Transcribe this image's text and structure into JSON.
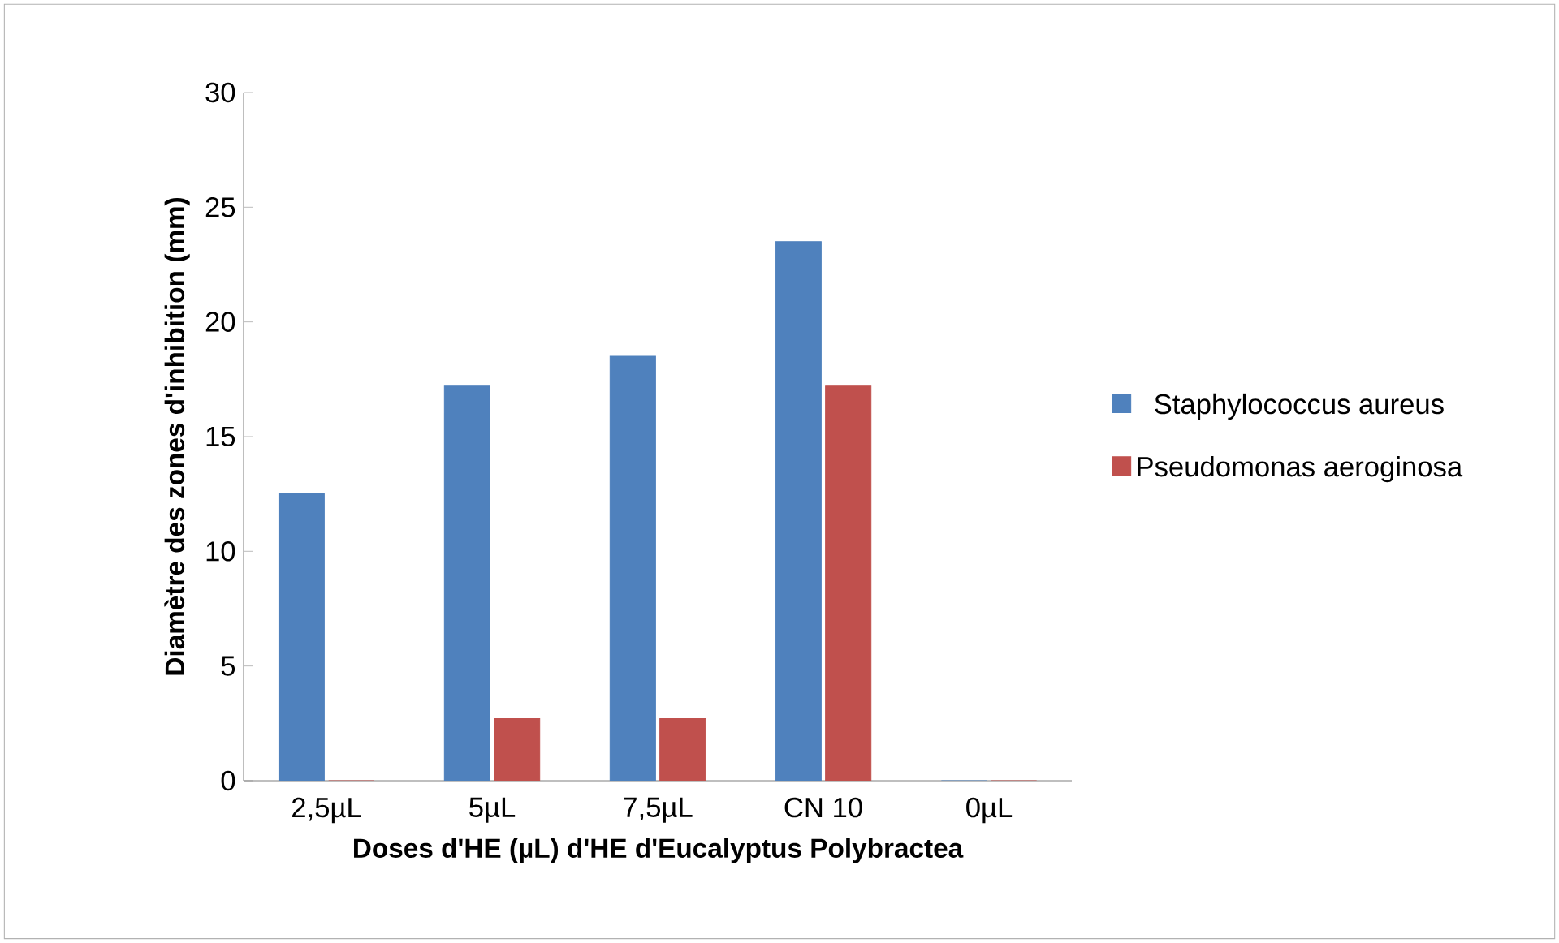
{
  "chart_data": {
    "type": "bar",
    "categories": [
      "2,5µL",
      "5µL",
      "7,5µL",
      "CN 10",
      "0µL"
    ],
    "xlabel": "Doses d'HE (µL) d'HE d'Eucalyptus  Polybractea",
    "ylabel": "Diamètre des zones d'inhibition  (mm)",
    "series": [
      {
        "name": "Staphylococcus aureus",
        "color": "#4f81bd",
        "values": [
          12.5,
          17.2,
          18.5,
          23.5,
          0
        ]
      },
      {
        "name": "Pseudomonas aeroginosa",
        "color": "#c0504d",
        "values": [
          0,
          2.7,
          2.7,
          17.2,
          0
        ]
      }
    ],
    "ylim": [
      0,
      30
    ],
    "yticks": [
      0,
      5,
      10,
      15,
      20,
      25,
      30
    ],
    "grid": false,
    "legend": "right"
  }
}
